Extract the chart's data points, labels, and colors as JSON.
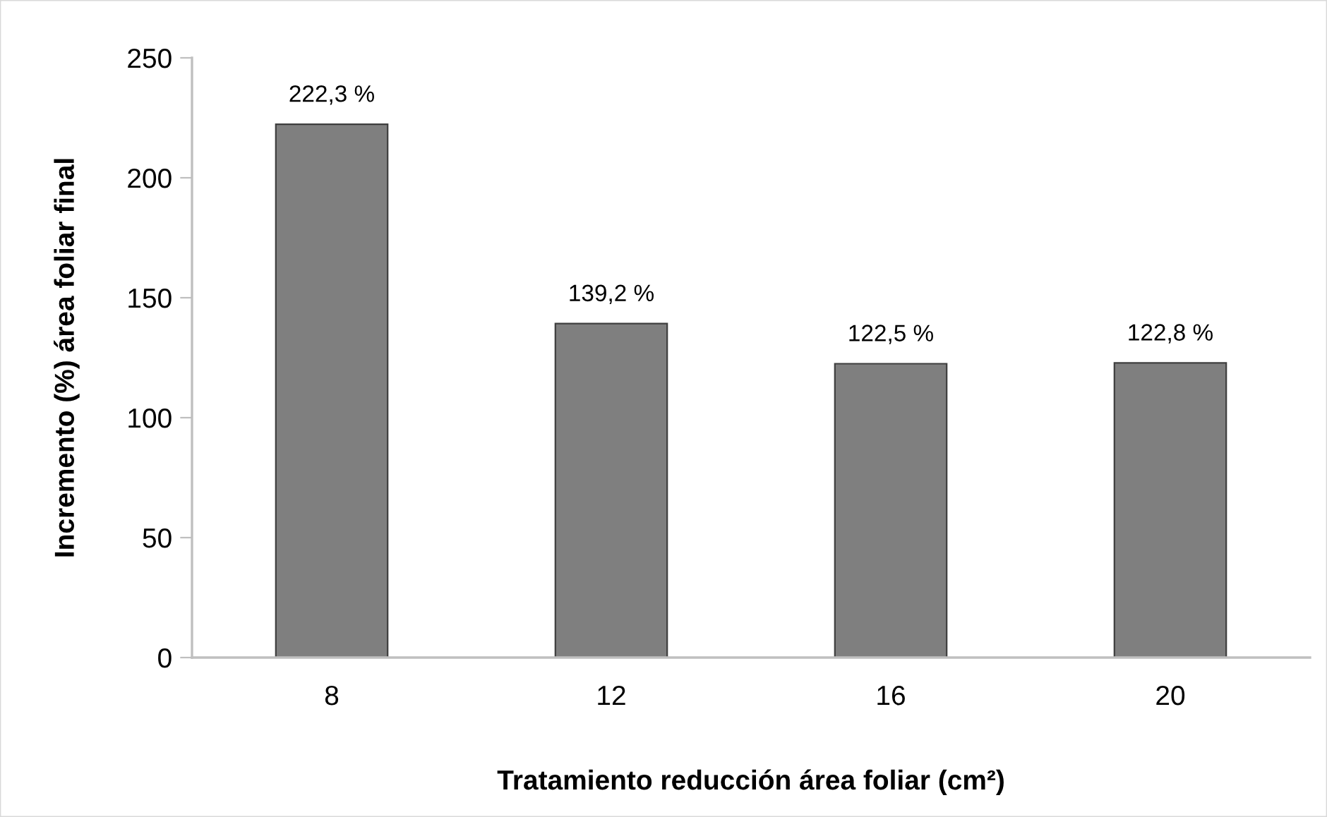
{
  "chart_data": {
    "type": "bar",
    "xlabel": "Tratamiento reducción área foliar (cm²)",
    "ylabel": "Incremento (%) área foliar final",
    "categories": [
      "8",
      "12",
      "16",
      "20"
    ],
    "values": [
      222.3,
      139.2,
      122.5,
      122.8
    ],
    "value_labels": [
      "222,3 %",
      "139,2 %",
      "122,5 %",
      "122,8 %"
    ],
    "color": "#7f7f7f",
    "ylim": [
      0,
      250
    ],
    "yticks": [
      0,
      50,
      100,
      150,
      200,
      250
    ]
  }
}
